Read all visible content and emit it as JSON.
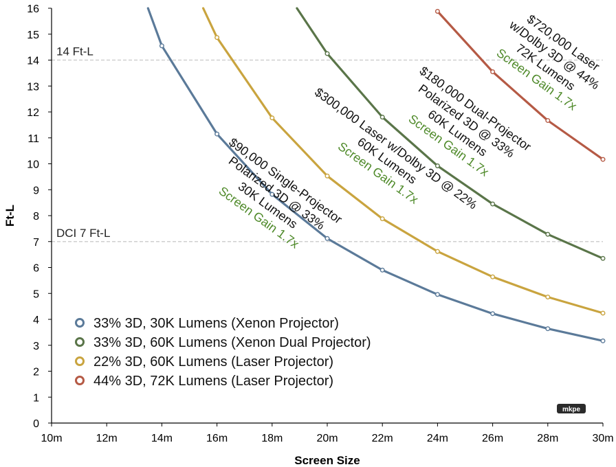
{
  "chart_data": {
    "type": "line",
    "xlabel": "Screen Size",
    "ylabel": "Ft-L",
    "xlim": [
      10,
      30
    ],
    "ylim": [
      0,
      16
    ],
    "x_ticks": [
      10,
      12,
      14,
      16,
      18,
      20,
      22,
      24,
      26,
      28,
      30
    ],
    "x_tick_labels": [
      "10m",
      "12m",
      "14m",
      "16m",
      "18m",
      "20m",
      "22m",
      "24m",
      "26m",
      "28m",
      "30m"
    ],
    "y_ticks": [
      0,
      1,
      2,
      3,
      4,
      5,
      6,
      7,
      8,
      9,
      10,
      11,
      12,
      13,
      14,
      15,
      16
    ],
    "y_tick_labels": [
      "0",
      "1",
      "2",
      "3",
      "4",
      "5",
      "6",
      "7",
      "8",
      "9",
      "10",
      "11",
      "12",
      "13",
      "14",
      "15",
      "16"
    ],
    "grid": false,
    "legend_position": "bottom-left",
    "reference_lines": [
      {
        "y": 14,
        "label": "14 Ft-L"
      },
      {
        "y": 7,
        "label": "DCI 7 Ft-L"
      }
    ],
    "series": [
      {
        "name": "33% 3D, 30K Lumens (Xenon Projector)",
        "color": "#5b7a99",
        "x": [
          13.5,
          14,
          16,
          18,
          20,
          22,
          24,
          26,
          28,
          30
        ],
        "y": [
          16.0,
          14.55,
          11.15,
          8.82,
          7.12,
          5.9,
          4.96,
          4.22,
          3.64,
          3.17
        ]
      },
      {
        "name": "33% 3D, 60K Lumens (Xenon Dual Projector)",
        "color": "#5a7549",
        "x": [
          18.9,
          20,
          22,
          24,
          26,
          28,
          30
        ],
        "y": [
          16.0,
          14.25,
          11.8,
          9.92,
          8.45,
          7.28,
          6.35
        ]
      },
      {
        "name": "22% 3D, 60K Lumens (Laser Projector)",
        "color": "#c9a43f",
        "x": [
          15.5,
          16,
          18,
          20,
          22,
          24,
          26,
          28,
          30
        ],
        "y": [
          16.0,
          14.87,
          11.77,
          9.53,
          7.88,
          6.62,
          5.64,
          4.86,
          4.24
        ]
      },
      {
        "name": "44% 3D, 72K Lumens (Laser Projector)",
        "color": "#b55a45",
        "x": [
          24,
          26,
          28,
          30
        ],
        "y": [
          15.88,
          13.55,
          11.67,
          10.17
        ]
      }
    ],
    "annotations": [
      {
        "lines": [
          "$90,000 Single-Projector",
          "Polarized 3D @ 33%",
          "30K Lumens"
        ],
        "gain": "Screen Gain 1.7x"
      },
      {
        "lines": [
          "$300,000 Laser w/Dolby 3D @ 22%",
          "60K Lumens"
        ],
        "gain": "Screen Gain 1.7x"
      },
      {
        "lines": [
          "$180,000 Dual-Projector",
          "Polarized 3D @ 33%",
          "60K Lumens"
        ],
        "gain": "Screen Gain 1.7x"
      },
      {
        "lines": [
          "$720,000 Laser",
          "w/Dolby 3D @ 44%",
          "72K Lumens"
        ],
        "gain": "Screen Gain 1.7x"
      }
    ],
    "gain_color": "#4f8a2a",
    "watermark": "mkpe"
  }
}
